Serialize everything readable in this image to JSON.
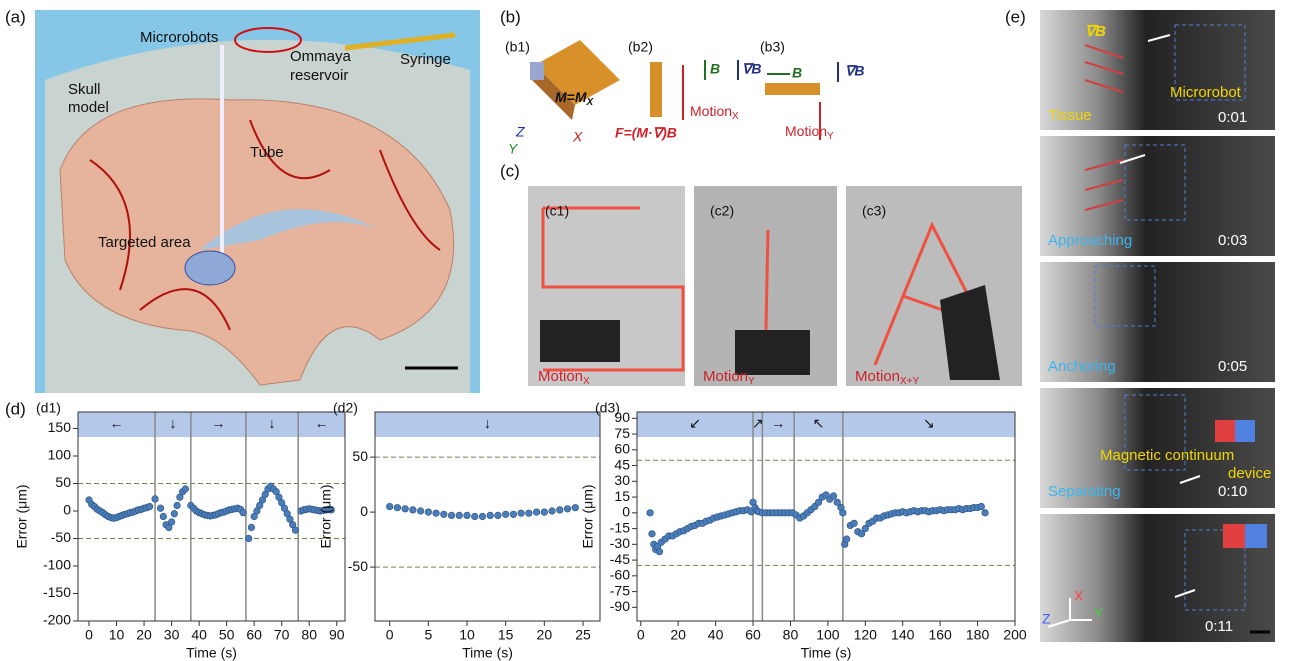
{
  "panel_a": {
    "label": "(a)",
    "microrobots": "Microrobots",
    "reservoir": [
      "Ommaya",
      "reservoir"
    ],
    "syringe": "Syringe",
    "skull": [
      "Skull",
      "model"
    ],
    "tube": "Tube",
    "target": "Targeted area"
  },
  "panel_b": {
    "label": "(b)",
    "b1": {
      "label": "(b1)",
      "moment": {
        "text": "M=M",
        "sub": "X"
      },
      "axes": [
        "Z",
        "Y",
        "X"
      ]
    },
    "b2": {
      "label": "(b2)",
      "field": "B",
      "gradient": "∇B",
      "motion": {
        "text": "Motion",
        "sub": "X"
      },
      "force": "F=(M·∇)B"
    },
    "b3": {
      "label": "(b3)",
      "field": "B",
      "gradient": "∇B",
      "motion": {
        "text": "Motion",
        "sub": "Y"
      }
    }
  },
  "panel_c": {
    "label": "(c)",
    "c1": {
      "label": "(c1)",
      "motion": {
        "text": "Motion",
        "sub": "X"
      }
    },
    "c2": {
      "label": "(c2)",
      "motion": {
        "text": "Motion",
        "sub": "Y"
      }
    },
    "c3": {
      "label": "(c3)",
      "motion": {
        "text": "Motion",
        "sub": "X+Y"
      }
    }
  },
  "panel_d": {
    "label": "(d)"
  },
  "panel_e": {
    "label": "(e)",
    "frames": [
      {
        "time": "0:01",
        "gradient": "∇B",
        "tissue": "Tissue",
        "robot": "Microrobot"
      },
      {
        "time": "0:03",
        "stage": "Approaching"
      },
      {
        "time": "0:05",
        "stage": "Anchoring"
      },
      {
        "time": "0:10",
        "stage": "Separating",
        "device": [
          "Magnetic continuum",
          "device"
        ]
      },
      {
        "time": "0:11",
        "axes": [
          "Z",
          "X",
          "Y"
        ]
      }
    ]
  },
  "chart_data": [
    {
      "type": "scatter",
      "label": "(d1)",
      "xlabel": "Time (s)",
      "ylabel": "Error (μm)",
      "color": "#4a7ebb",
      "xlim": [
        -4,
        93
      ],
      "ylim": [
        -200,
        180
      ],
      "xticks": [
        0,
        10,
        20,
        30,
        40,
        50,
        60,
        70,
        80,
        90
      ],
      "yticks": [
        -200,
        -150,
        -100,
        -50,
        0,
        50,
        100,
        150
      ],
      "thresholds": [
        50,
        -50
      ],
      "markers": [
        24,
        37,
        57,
        76
      ],
      "segments": [
        "←",
        "↓",
        "→",
        "↓",
        "←"
      ],
      "x": [
        0,
        1,
        2,
        3,
        4,
        5,
        6,
        7,
        8,
        9,
        10,
        11,
        12,
        13,
        14,
        15,
        16,
        17,
        18,
        19,
        20,
        21,
        22,
        24,
        26,
        27,
        28,
        29,
        30,
        31,
        32,
        33,
        34,
        35,
        37,
        38,
        39,
        40,
        41,
        42,
        43,
        44,
        45,
        46,
        47,
        48,
        49,
        50,
        51,
        52,
        53,
        54,
        55,
        56,
        58,
        59,
        60,
        61,
        62,
        63,
        64,
        65,
        66,
        67,
        68,
        69,
        70,
        71,
        72,
        73,
        74,
        75,
        77,
        78,
        79,
        80,
        81,
        82,
        83,
        84,
        85,
        86,
        87,
        88
      ],
      "y": [
        20,
        12,
        8,
        3,
        0,
        -3,
        -7,
        -10,
        -12,
        -13,
        -12,
        -10,
        -8,
        -6,
        -5,
        -3,
        -2,
        0,
        2,
        3,
        5,
        6,
        8,
        22,
        5,
        -10,
        -25,
        -30,
        -20,
        -5,
        10,
        25,
        35,
        40,
        10,
        5,
        0,
        -3,
        -5,
        -7,
        -8,
        -9,
        -8,
        -7,
        -5,
        -3,
        -2,
        0,
        2,
        3,
        4,
        5,
        3,
        -3,
        -50,
        -30,
        -10,
        0,
        10,
        20,
        30,
        40,
        45,
        40,
        35,
        25,
        15,
        5,
        -5,
        -15,
        -25,
        -35,
        0,
        2,
        3,
        4,
        3,
        2,
        1,
        0,
        1,
        2,
        3,
        2
      ]
    },
    {
      "type": "scatter",
      "label": "(d2)",
      "xlabel": "Time (s)",
      "ylabel": "Error (μm)",
      "color": "#4a7ebb",
      "xlim": [
        -1.9,
        27.2
      ],
      "ylim": [
        -99,
        91
      ],
      "xticks": [
        0,
        5,
        10,
        15,
        20,
        25
      ],
      "yticks": [
        -50,
        0,
        50
      ],
      "thresholds": [
        50,
        -50
      ],
      "markers": [],
      "segments": [
        "↓"
      ],
      "x": [
        0,
        1,
        2,
        3,
        4,
        5,
        6,
        7,
        8,
        9,
        10,
        11,
        12,
        13,
        14,
        15,
        16,
        17,
        18,
        19,
        20,
        21,
        22,
        23,
        24
      ],
      "y": [
        5,
        4,
        3,
        2,
        1,
        0,
        -1,
        -2,
        -3,
        -3,
        -3,
        -4,
        -4,
        -3,
        -3,
        -2,
        -2,
        -1,
        -1,
        0,
        0,
        1,
        2,
        3,
        4
      ]
    },
    {
      "type": "scatter",
      "label": "(d3)",
      "xlabel": "Time (s)",
      "ylabel": "Error (μm)",
      "color": "#4a7ebb",
      "xlim": [
        -2,
        200
      ],
      "ylim": [
        -103,
        96
      ],
      "xticks": [
        0,
        20,
        40,
        60,
        80,
        100,
        120,
        140,
        160,
        180,
        200
      ],
      "yticks": [
        -90,
        -75,
        -60,
        -45,
        -30,
        -15,
        0,
        15,
        30,
        45,
        60,
        75,
        90
      ],
      "thresholds": [
        50,
        -50
      ],
      "markers": [
        60,
        65,
        82,
        108
      ],
      "segments": [
        "↙",
        "↗",
        "→",
        "↖",
        "↘"
      ],
      "x": [
        5,
        6,
        7,
        8,
        9,
        10,
        11,
        13,
        15,
        17,
        19,
        21,
        23,
        25,
        27,
        29,
        31,
        33,
        35,
        37,
        39,
        41,
        43,
        45,
        47,
        49,
        51,
        53,
        55,
        57,
        59,
        60,
        61,
        62,
        63,
        65,
        67,
        69,
        71,
        73,
        75,
        77,
        79,
        81,
        83,
        85,
        87,
        89,
        91,
        93,
        95,
        97,
        99,
        101,
        103,
        105,
        107,
        108,
        109,
        110,
        112,
        114,
        116,
        118,
        120,
        122,
        124,
        126,
        128,
        130,
        132,
        134,
        136,
        138,
        140,
        142,
        144,
        146,
        148,
        150,
        152,
        154,
        156,
        158,
        160,
        162,
        164,
        166,
        168,
        170,
        172,
        174,
        176,
        178,
        180,
        182,
        184
      ],
      "y": [
        0,
        -20,
        -30,
        -35,
        -32,
        -37,
        -28,
        -25,
        -22,
        -22,
        -20,
        -18,
        -17,
        -15,
        -13,
        -12,
        -10,
        -10,
        -8,
        -7,
        -5,
        -4,
        -3,
        -2,
        -1,
        0,
        1,
        2,
        2,
        3,
        1,
        10,
        5,
        2,
        1,
        0,
        0,
        0,
        0,
        0,
        0,
        0,
        0,
        0,
        -2,
        -5,
        -3,
        0,
        3,
        6,
        10,
        15,
        17,
        13,
        16,
        10,
        5,
        0,
        -30,
        -25,
        -12,
        -10,
        -18,
        -20,
        -15,
        -10,
        -8,
        -5,
        -5,
        -3,
        -2,
        -1,
        0,
        0,
        1,
        0,
        1,
        2,
        1,
        2,
        2,
        1,
        2,
        2,
        3,
        2,
        3,
        3,
        3,
        4,
        3,
        4,
        4,
        5,
        5,
        6,
        0
      ]
    }
  ]
}
